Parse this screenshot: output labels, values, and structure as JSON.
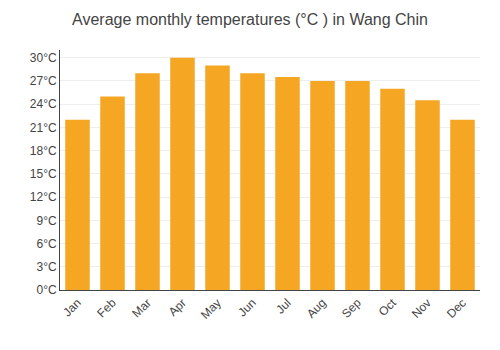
{
  "chart_data": {
    "type": "bar",
    "title": "Average monthly temperatures (°C ) in Wang Chin",
    "categories": [
      "Jan",
      "Feb",
      "Mar",
      "Apr",
      "May",
      "Jun",
      "Jul",
      "Aug",
      "Sep",
      "Oct",
      "Nov",
      "Dec"
    ],
    "values": [
      22,
      25,
      28,
      30,
      29,
      28,
      27.5,
      27,
      27,
      26,
      24.5,
      22
    ],
    "color": "#F5A623",
    "ylim": [
      0,
      31
    ],
    "yticks": [
      {
        "value": 0,
        "label": "0°C"
      },
      {
        "value": 3,
        "label": "3°C"
      },
      {
        "value": 6,
        "label": "6°C"
      },
      {
        "value": 9,
        "label": "9°C"
      },
      {
        "value": 12,
        "label": "12°C"
      },
      {
        "value": 15,
        "label": "15°C"
      },
      {
        "value": 18,
        "label": "18°C"
      },
      {
        "value": 21,
        "label": "21°C"
      },
      {
        "value": 24,
        "label": "24°C"
      },
      {
        "value": 27,
        "label": "27°C"
      },
      {
        "value": 30,
        "label": "30°C"
      }
    ],
    "grid": true
  }
}
